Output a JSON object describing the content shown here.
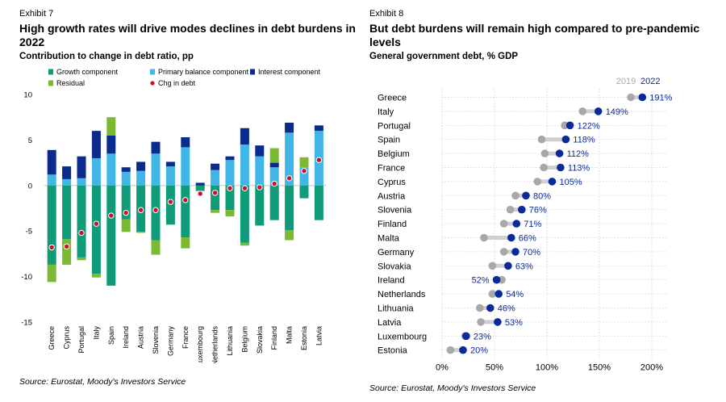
{
  "left": {
    "exhibit": "Exhibit 7",
    "title_line1": "High growth rates will drive modes declines in debt burdens in",
    "title_line2": "2022",
    "subtitle": "Contribution to change in debt ratio, pp",
    "source": "Source: Eurostat, Moody's Investors Service"
  },
  "right": {
    "exhibit": "Exhibit 8",
    "title_line1": "But debt burdens will remain high compared to pre-pandemic",
    "title_line2": "levels",
    "subtitle": "General government debt, % GDP",
    "source": "Source: Eurostat, Moody's Investors Service"
  },
  "colors": {
    "growth": "#0f9a78",
    "primary": "#41b6e6",
    "interest": "#0a2a8c",
    "residual": "#7ab931",
    "chg_dot": "#c8102e",
    "dot2019": "#a8a8a8",
    "dot2022": "#0a2a9a",
    "label2022": "#0a2a9a"
  },
  "chart_data": [
    {
      "type": "bar",
      "stacked": true,
      "ylim": [
        -15,
        10
      ],
      "yticks": [
        10,
        5,
        0,
        -5,
        -10,
        -15
      ],
      "legend_position": "top",
      "grid": false,
      "categories": [
        "Greece",
        "Cyprus",
        "Portugal",
        "Italy",
        "Spain",
        "Ireland",
        "Austria",
        "Slovenia",
        "Germany",
        "France",
        "Luxembourg",
        "Netherlands",
        "Lithuania",
        "Belgium",
        "Slovakia",
        "Finland",
        "Malta",
        "Estonia",
        "Latvia"
      ],
      "series": [
        {
          "name": "Growth component",
          "key": "growth",
          "values": [
            -8.7,
            -5.9,
            -7.9,
            -9.7,
            -11,
            -3.7,
            -5.1,
            -6,
            -4.3,
            -5.7,
            -0.6,
            -2.7,
            -2.7,
            -6.3,
            -4.4,
            -3.8,
            -4.9,
            -1.4,
            -3.8
          ]
        },
        {
          "name": "Primary balance component",
          "key": "primary",
          "values": [
            1.2,
            0.7,
            0.8,
            3,
            3.5,
            1.5,
            1.6,
            3.5,
            2.1,
            4.2,
            0,
            1.7,
            2.8,
            4.5,
            3.2,
            2,
            5.8,
            2,
            6
          ]
        },
        {
          "name": "Interest component",
          "key": "interest",
          "values": [
            2.7,
            1.4,
            2.4,
            3,
            2,
            0.5,
            1,
            1.3,
            0.5,
            1.1,
            0.3,
            0.7,
            0.4,
            1.8,
            1.2,
            0.5,
            1.1,
            0,
            0.6
          ]
        },
        {
          "name": "Residual",
          "key": "residual",
          "values": [
            -1.9,
            -2.8,
            -0.3,
            -0.4,
            2,
            -1.4,
            -0.1,
            -1.6,
            0,
            -1.2,
            0,
            -0.3,
            -0.7,
            -0.3,
            0,
            1.6,
            -1.1,
            1.1,
            0
          ]
        },
        {
          "name": "Chg in debt",
          "key": "chg",
          "marker": "dot",
          "values": [
            -6.8,
            -6.7,
            -5.2,
            -4.2,
            -3.3,
            -3,
            -2.7,
            -2.7,
            -1.8,
            -1.6,
            -0.9,
            -0.8,
            -0.3,
            -0.3,
            -0.2,
            0.2,
            0.8,
            1.6,
            2.8
          ]
        }
      ]
    },
    {
      "type": "scatter",
      "subtype": "dumbbell",
      "xlim": [
        0,
        200
      ],
      "xticks": [
        0,
        50,
        100,
        150,
        200
      ],
      "xtick_labels": [
        "0%",
        "50%",
        "100%",
        "150%",
        "200%"
      ],
      "grid": true,
      "legend": [
        "2019",
        "2022"
      ],
      "legend_position": "top-right",
      "categories": [
        "Greece",
        "Italy",
        "Portugal",
        "Spain",
        "Belgium",
        "France",
        "Cyprus",
        "Austria",
        "Slovenia",
        "Finland",
        "Malta",
        "Germany",
        "Slovakia",
        "Ireland",
        "Netherlands",
        "Lithuania",
        "Latvia",
        "Luxembourg",
        "Estonia"
      ],
      "values_2019": [
        180,
        134,
        117,
        95,
        98,
        97,
        91,
        70,
        65,
        59,
        40,
        59,
        48,
        57,
        48,
        36,
        37,
        22,
        8
      ],
      "values_2022": [
        191,
        149,
        122,
        118,
        112,
        113,
        105,
        80,
        76,
        71,
        66,
        70,
        63,
        52,
        54,
        46,
        53,
        23,
        20
      ],
      "labels_2022": [
        "191%",
        "149%",
        "122%",
        "118%",
        "112%",
        "113%",
        "105%",
        "80%",
        "76%",
        "71%",
        "66%",
        "70%",
        "63%",
        "52%",
        "54%",
        "46%",
        "53%",
        "23%",
        "20%"
      ]
    }
  ]
}
